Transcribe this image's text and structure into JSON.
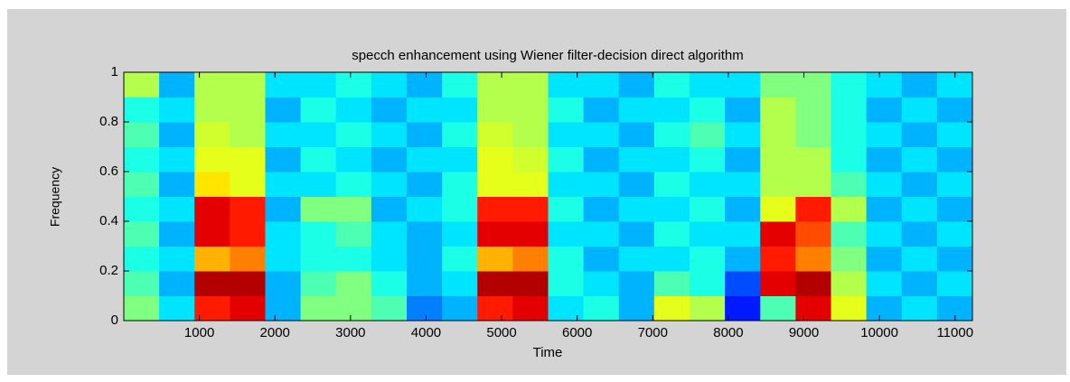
{
  "chart_data": {
    "type": "spectrogram",
    "title": "specch enhancement using Wiener filter-decision direct algorithm",
    "xlabel": "Time",
    "ylabel": "Frequency",
    "xlim": [
      0,
      11230
    ],
    "ylim": [
      0,
      1
    ],
    "xticks": [
      1000,
      2000,
      3000,
      4000,
      5000,
      6000,
      7000,
      8000,
      9000,
      10000,
      11000
    ],
    "yticks": [
      0,
      0.2,
      0.4,
      0.6,
      0.8,
      1
    ],
    "colormap": "jet",
    "z": [
      [
        0.5,
        0.35,
        0.85,
        0.9,
        0.3,
        0.5,
        0.5,
        0.45,
        0.25,
        0.3,
        0.85,
        0.9,
        0.35,
        0.4,
        0.3,
        0.6,
        0.55,
        0.15,
        0.45,
        0.9,
        0.6,
        0.3,
        0.35,
        0.3
      ],
      [
        0.45,
        0.3,
        0.95,
        0.95,
        0.3,
        0.45,
        0.5,
        0.4,
        0.3,
        0.35,
        0.95,
        0.95,
        0.4,
        0.35,
        0.3,
        0.45,
        0.4,
        0.2,
        0.9,
        0.95,
        0.55,
        0.35,
        0.3,
        0.35
      ],
      [
        0.4,
        0.35,
        0.7,
        0.75,
        0.35,
        0.4,
        0.4,
        0.35,
        0.3,
        0.4,
        0.7,
        0.75,
        0.4,
        0.3,
        0.35,
        0.35,
        0.4,
        0.3,
        0.85,
        0.75,
        0.5,
        0.3,
        0.35,
        0.3
      ],
      [
        0.45,
        0.3,
        0.9,
        0.85,
        0.35,
        0.4,
        0.45,
        0.35,
        0.3,
        0.35,
        0.9,
        0.9,
        0.35,
        0.35,
        0.3,
        0.4,
        0.35,
        0.35,
        0.9,
        0.8,
        0.45,
        0.35,
        0.3,
        0.35
      ],
      [
        0.4,
        0.35,
        0.9,
        0.85,
        0.3,
        0.5,
        0.5,
        0.3,
        0.35,
        0.4,
        0.85,
        0.85,
        0.4,
        0.3,
        0.35,
        0.35,
        0.4,
        0.3,
        0.6,
        0.85,
        0.55,
        0.3,
        0.35,
        0.3
      ],
      [
        0.45,
        0.3,
        0.65,
        0.6,
        0.35,
        0.35,
        0.4,
        0.35,
        0.3,
        0.4,
        0.6,
        0.6,
        0.35,
        0.35,
        0.3,
        0.4,
        0.35,
        0.35,
        0.55,
        0.55,
        0.45,
        0.35,
        0.3,
        0.35
      ],
      [
        0.4,
        0.35,
        0.6,
        0.6,
        0.3,
        0.4,
        0.35,
        0.3,
        0.35,
        0.35,
        0.6,
        0.58,
        0.4,
        0.3,
        0.35,
        0.35,
        0.4,
        0.3,
        0.55,
        0.55,
        0.4,
        0.3,
        0.35,
        0.3
      ],
      [
        0.45,
        0.3,
        0.58,
        0.55,
        0.35,
        0.35,
        0.4,
        0.35,
        0.3,
        0.4,
        0.58,
        0.55,
        0.35,
        0.35,
        0.3,
        0.4,
        0.45,
        0.35,
        0.55,
        0.5,
        0.4,
        0.35,
        0.3,
        0.35
      ],
      [
        0.4,
        0.35,
        0.55,
        0.55,
        0.3,
        0.4,
        0.35,
        0.3,
        0.35,
        0.35,
        0.55,
        0.55,
        0.4,
        0.3,
        0.35,
        0.35,
        0.4,
        0.3,
        0.55,
        0.5,
        0.4,
        0.3,
        0.35,
        0.3
      ],
      [
        0.55,
        0.3,
        0.55,
        0.55,
        0.35,
        0.35,
        0.4,
        0.35,
        0.3,
        0.4,
        0.55,
        0.55,
        0.35,
        0.35,
        0.3,
        0.4,
        0.35,
        0.35,
        0.5,
        0.5,
        0.4,
        0.35,
        0.3,
        0.35
      ]
    ]
  }
}
